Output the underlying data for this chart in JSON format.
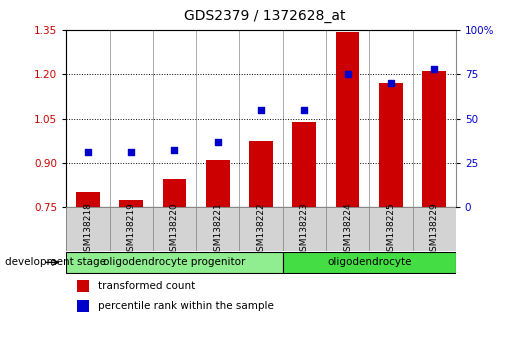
{
  "title": "GDS2379 / 1372628_at",
  "samples": [
    "GSM138218",
    "GSM138219",
    "GSM138220",
    "GSM138221",
    "GSM138222",
    "GSM138223",
    "GSM138224",
    "GSM138225",
    "GSM138229"
  ],
  "transformed_count": [
    0.8,
    0.775,
    0.845,
    0.91,
    0.975,
    1.04,
    1.345,
    1.17,
    1.21
  ],
  "percentile_rank": [
    31,
    31,
    32,
    37,
    55,
    55,
    75,
    70,
    78
  ],
  "ylim_left": [
    0.75,
    1.35
  ],
  "ylim_right": [
    0,
    100
  ],
  "yticks_left": [
    0.75,
    0.9,
    1.05,
    1.2,
    1.35
  ],
  "yticks_right": [
    0,
    25,
    50,
    75,
    100
  ],
  "ytick_labels_right": [
    "0",
    "25",
    "50",
    "75",
    "100%"
  ],
  "bar_color": "#cc0000",
  "dot_color": "#0000cc",
  "group_progenitor_label": "oligodendrocyte progenitor",
  "group_progenitor_start": 0,
  "group_progenitor_end": 4,
  "group_progenitor_color": "#90ee90",
  "group_oligo_label": "oligodendrocyte",
  "group_oligo_start": 5,
  "group_oligo_end": 8,
  "group_oligo_color": "#44dd44",
  "legend_bar_label": "transformed count",
  "legend_dot_label": "percentile rank within the sample",
  "dev_stage_label": "development stage",
  "bar_color_legend": "#cc0000",
  "dot_color_legend": "#0000cc",
  "title_fontsize": 10,
  "tick_fontsize": 7.5,
  "label_fontsize": 8,
  "bar_width": 0.55,
  "xlim": [
    -0.5,
    8.5
  ],
  "cell_color": "#d3d3d3",
  "cell_edgecolor": "#888888"
}
